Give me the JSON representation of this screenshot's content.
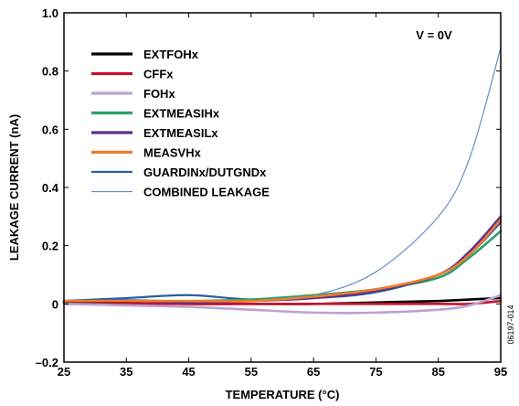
{
  "chart_data": {
    "type": "line",
    "xlabel": "TEMPERATURE (°C)",
    "ylabel": "LEAKAGE CURRENT (nA)",
    "xlim": [
      25,
      95
    ],
    "ylim": [
      -0.2,
      1.0
    ],
    "x_ticks": [
      "25",
      "35",
      "45",
      "55",
      "65",
      "75",
      "85",
      "95"
    ],
    "y_ticks": [
      "–0.2",
      "0",
      "0.2",
      "0.4",
      "0.6",
      "0.8",
      "1.0"
    ],
    "grid": false,
    "legend_position": "top-left",
    "annotation": "V = 0V",
    "figure_id": "06197-014",
    "x": [
      25,
      35,
      45,
      55,
      65,
      75,
      85,
      90,
      95
    ],
    "series": [
      {
        "name": "EXTFOHx",
        "color": "#000000",
        "values": [
          0.005,
          0.005,
          0.0,
          0.0,
          0.0,
          0.005,
          0.01,
          0.015,
          0.02
        ]
      },
      {
        "name": "CFFx",
        "color": "#c8102e",
        "values": [
          0.0,
          0.0,
          0.0,
          0.0,
          0.0,
          0.0,
          0.0,
          0.0,
          0.01
        ]
      },
      {
        "name": "FOHx",
        "color": "#b9a2d6",
        "values": [
          0.0,
          -0.005,
          -0.01,
          -0.02,
          -0.03,
          -0.03,
          -0.02,
          -0.005,
          0.03
        ]
      },
      {
        "name": "EXTMEASIHx",
        "color": "#2e9e6b",
        "values": [
          0.01,
          0.01,
          0.01,
          0.015,
          0.03,
          0.05,
          0.09,
          0.16,
          0.25
        ]
      },
      {
        "name": "EXTMEASILx",
        "color": "#5a2d91",
        "values": [
          0.01,
          0.01,
          0.005,
          0.01,
          0.02,
          0.045,
          0.1,
          0.18,
          0.3
        ]
      },
      {
        "name": "MEASVHx",
        "color": "#f07d28",
        "values": [
          0.01,
          0.01,
          0.01,
          0.01,
          0.025,
          0.05,
          0.1,
          0.17,
          0.29
        ]
      },
      {
        "name": "GUARDINx/DUTGNDx",
        "color": "#2b5da6",
        "values": [
          0.01,
          0.02,
          0.03,
          0.015,
          0.02,
          0.04,
          0.1,
          0.17,
          0.28
        ]
      },
      {
        "name": "COMBINED LEAKAGE",
        "color": "#6b8dc9",
        "values": [
          0.01,
          0.015,
          0.01,
          0.015,
          0.03,
          0.11,
          0.3,
          0.5,
          0.88
        ]
      }
    ]
  }
}
